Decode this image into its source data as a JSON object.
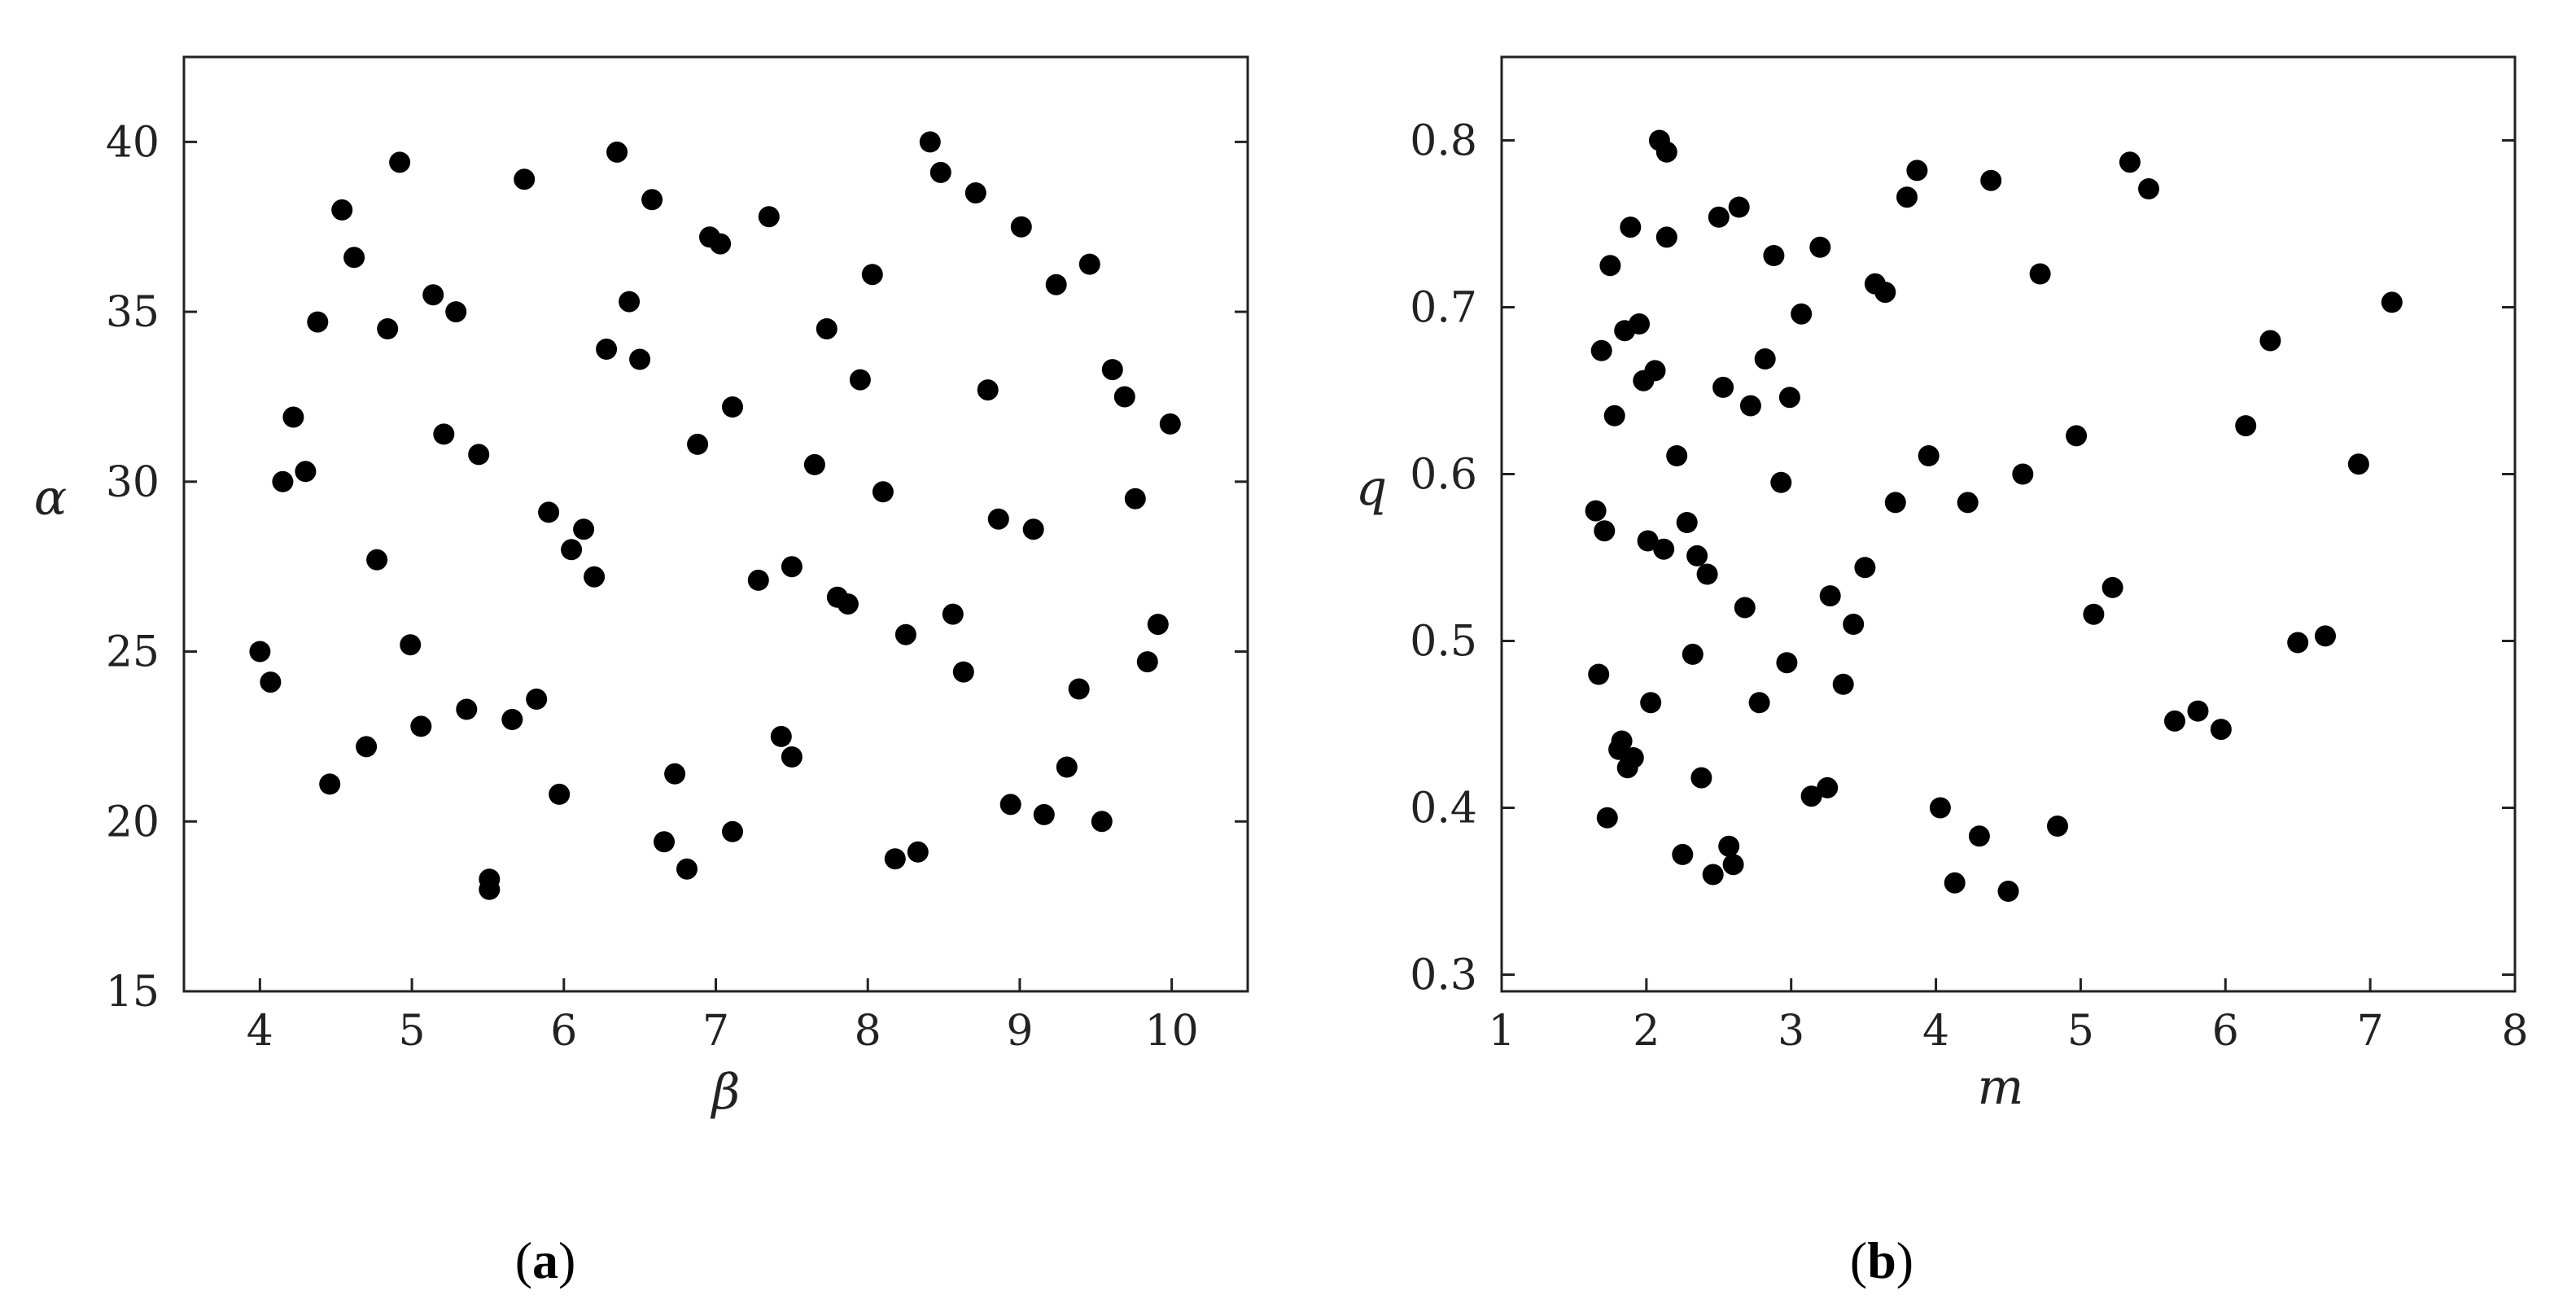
{
  "chart_data": [
    {
      "type": "scatter",
      "panel_label": {
        "open": "(",
        "letter": "a",
        "close": ")"
      },
      "xlabel": "β",
      "ylabel": "α",
      "xlim": [
        3.5,
        10.5
      ],
      "ylim": [
        15,
        42.5
      ],
      "xticks": [
        4,
        5,
        6,
        7,
        8,
        9,
        10
      ],
      "yticks": [
        15,
        20,
        25,
        30,
        35,
        40
      ],
      "grid": false,
      "points": [
        [
          4.0,
          25.0
        ],
        [
          4.07,
          24.1
        ],
        [
          4.15,
          30.0
        ],
        [
          4.22,
          31.9
        ],
        [
          4.3,
          30.3
        ],
        [
          4.38,
          34.7
        ],
        [
          4.46,
          21.1
        ],
        [
          4.54,
          38.0
        ],
        [
          4.62,
          36.6
        ],
        [
          4.7,
          22.2
        ],
        [
          4.77,
          27.7
        ],
        [
          4.84,
          34.5
        ],
        [
          4.92,
          39.4
        ],
        [
          4.99,
          25.2
        ],
        [
          5.06,
          22.8
        ],
        [
          5.14,
          35.5
        ],
        [
          5.21,
          31.4
        ],
        [
          5.29,
          35.0
        ],
        [
          5.36,
          23.3
        ],
        [
          5.44,
          30.8
        ],
        [
          5.51,
          18.3
        ],
        [
          5.51,
          18.0
        ],
        [
          5.66,
          23.0
        ],
        [
          5.74,
          38.9
        ],
        [
          5.82,
          23.6
        ],
        [
          5.9,
          29.1
        ],
        [
          5.97,
          20.8
        ],
        [
          6.05,
          28.0
        ],
        [
          6.13,
          28.6
        ],
        [
          6.2,
          27.2
        ],
        [
          6.28,
          33.9
        ],
        [
          6.35,
          39.7
        ],
        [
          6.43,
          35.3
        ],
        [
          6.5,
          33.6
        ],
        [
          6.58,
          38.3
        ],
        [
          6.66,
          19.4
        ],
        [
          6.73,
          21.4
        ],
        [
          6.81,
          18.6
        ],
        [
          6.88,
          31.1
        ],
        [
          6.96,
          37.2
        ],
        [
          7.03,
          37.0
        ],
        [
          7.11,
          19.7
        ],
        [
          7.11,
          32.2
        ],
        [
          7.28,
          27.1
        ],
        [
          7.35,
          37.8
        ],
        [
          7.43,
          22.5
        ],
        [
          7.5,
          27.5
        ],
        [
          7.5,
          21.9
        ],
        [
          7.65,
          30.5
        ],
        [
          7.73,
          34.5
        ],
        [
          7.8,
          26.6
        ],
        [
          7.87,
          26.4
        ],
        [
          7.95,
          33.0
        ],
        [
          8.03,
          36.1
        ],
        [
          8.1,
          29.7
        ],
        [
          8.18,
          18.9
        ],
        [
          8.25,
          25.5
        ],
        [
          8.33,
          19.1
        ],
        [
          8.41,
          40.0
        ],
        [
          8.48,
          39.1
        ],
        [
          8.56,
          26.1
        ],
        [
          8.63,
          24.4
        ],
        [
          8.71,
          38.5
        ],
        [
          8.79,
          32.7
        ],
        [
          8.86,
          28.9
        ],
        [
          8.94,
          20.5
        ],
        [
          9.01,
          37.5
        ],
        [
          9.09,
          28.6
        ],
        [
          9.16,
          20.2
        ],
        [
          9.24,
          35.8
        ],
        [
          9.31,
          21.6
        ],
        [
          9.39,
          23.9
        ],
        [
          9.46,
          36.4
        ],
        [
          9.54,
          20.0
        ],
        [
          9.61,
          33.3
        ],
        [
          9.69,
          32.5
        ],
        [
          9.76,
          29.5
        ],
        [
          9.84,
          24.7
        ],
        [
          9.91,
          25.8
        ],
        [
          9.99,
          31.7
        ]
      ]
    },
    {
      "type": "scatter",
      "panel_label": {
        "open": "(",
        "letter": "b",
        "close": ")"
      },
      "xlabel": "m",
      "ylabel": "q",
      "xlim": [
        1,
        8
      ],
      "ylim": [
        0.29,
        0.85
      ],
      "xticks": [
        1,
        2,
        3,
        4,
        5,
        6,
        7,
        8
      ],
      "yticks": [
        0.3,
        0.4,
        0.5,
        0.6,
        0.7,
        0.8
      ],
      "grid": false,
      "points": [
        [
          1.65,
          0.578
        ],
        [
          1.67,
          0.48
        ],
        [
          1.69,
          0.674
        ],
        [
          1.71,
          0.566
        ],
        [
          1.73,
          0.394
        ],
        [
          1.75,
          0.725
        ],
        [
          1.78,
          0.635
        ],
        [
          1.81,
          0.435
        ],
        [
          1.83,
          0.44
        ],
        [
          1.85,
          0.686
        ],
        [
          1.87,
          0.424
        ],
        [
          1.89,
          0.748
        ],
        [
          1.91,
          0.43
        ],
        [
          1.95,
          0.69
        ],
        [
          1.98,
          0.656
        ],
        [
          2.01,
          0.56
        ],
        [
          2.03,
          0.463
        ],
        [
          2.06,
          0.662
        ],
        [
          2.09,
          0.8
        ],
        [
          2.12,
          0.555
        ],
        [
          2.14,
          0.742
        ],
        [
          2.14,
          0.793
        ],
        [
          2.21,
          0.611
        ],
        [
          2.25,
          0.372
        ],
        [
          2.28,
          0.571
        ],
        [
          2.32,
          0.492
        ],
        [
          2.35,
          0.551
        ],
        [
          2.38,
          0.418
        ],
        [
          2.42,
          0.54
        ],
        [
          2.46,
          0.36
        ],
        [
          2.5,
          0.754
        ],
        [
          2.53,
          0.652
        ],
        [
          2.57,
          0.377
        ],
        [
          2.6,
          0.366
        ],
        [
          2.64,
          0.76
        ],
        [
          2.68,
          0.52
        ],
        [
          2.72,
          0.641
        ],
        [
          2.78,
          0.463
        ],
        [
          2.82,
          0.669
        ],
        [
          2.88,
          0.731
        ],
        [
          2.93,
          0.595
        ],
        [
          2.97,
          0.487
        ],
        [
          2.99,
          0.646
        ],
        [
          3.07,
          0.696
        ],
        [
          3.14,
          0.407
        ],
        [
          3.2,
          0.736
        ],
        [
          3.25,
          0.412
        ],
        [
          3.27,
          0.527
        ],
        [
          3.36,
          0.474
        ],
        [
          3.43,
          0.51
        ],
        [
          3.51,
          0.544
        ],
        [
          3.58,
          0.714
        ],
        [
          3.65,
          0.709
        ],
        [
          3.72,
          0.583
        ],
        [
          3.8,
          0.766
        ],
        [
          3.87,
          0.782
        ],
        [
          3.95,
          0.611
        ],
        [
          4.03,
          0.4
        ],
        [
          4.13,
          0.355
        ],
        [
          4.22,
          0.583
        ],
        [
          4.3,
          0.383
        ],
        [
          4.38,
          0.776
        ],
        [
          4.5,
          0.35
        ],
        [
          4.6,
          0.6
        ],
        [
          4.72,
          0.72
        ],
        [
          4.84,
          0.389
        ],
        [
          4.97,
          0.623
        ],
        [
          5.09,
          0.516
        ],
        [
          5.22,
          0.532
        ],
        [
          5.34,
          0.787
        ],
        [
          5.47,
          0.771
        ],
        [
          5.65,
          0.452
        ],
        [
          5.81,
          0.458
        ],
        [
          5.97,
          0.447
        ],
        [
          6.14,
          0.629
        ],
        [
          6.31,
          0.68
        ],
        [
          6.5,
          0.499
        ],
        [
          6.69,
          0.503
        ],
        [
          6.92,
          0.606
        ],
        [
          7.15,
          0.703
        ]
      ]
    }
  ]
}
